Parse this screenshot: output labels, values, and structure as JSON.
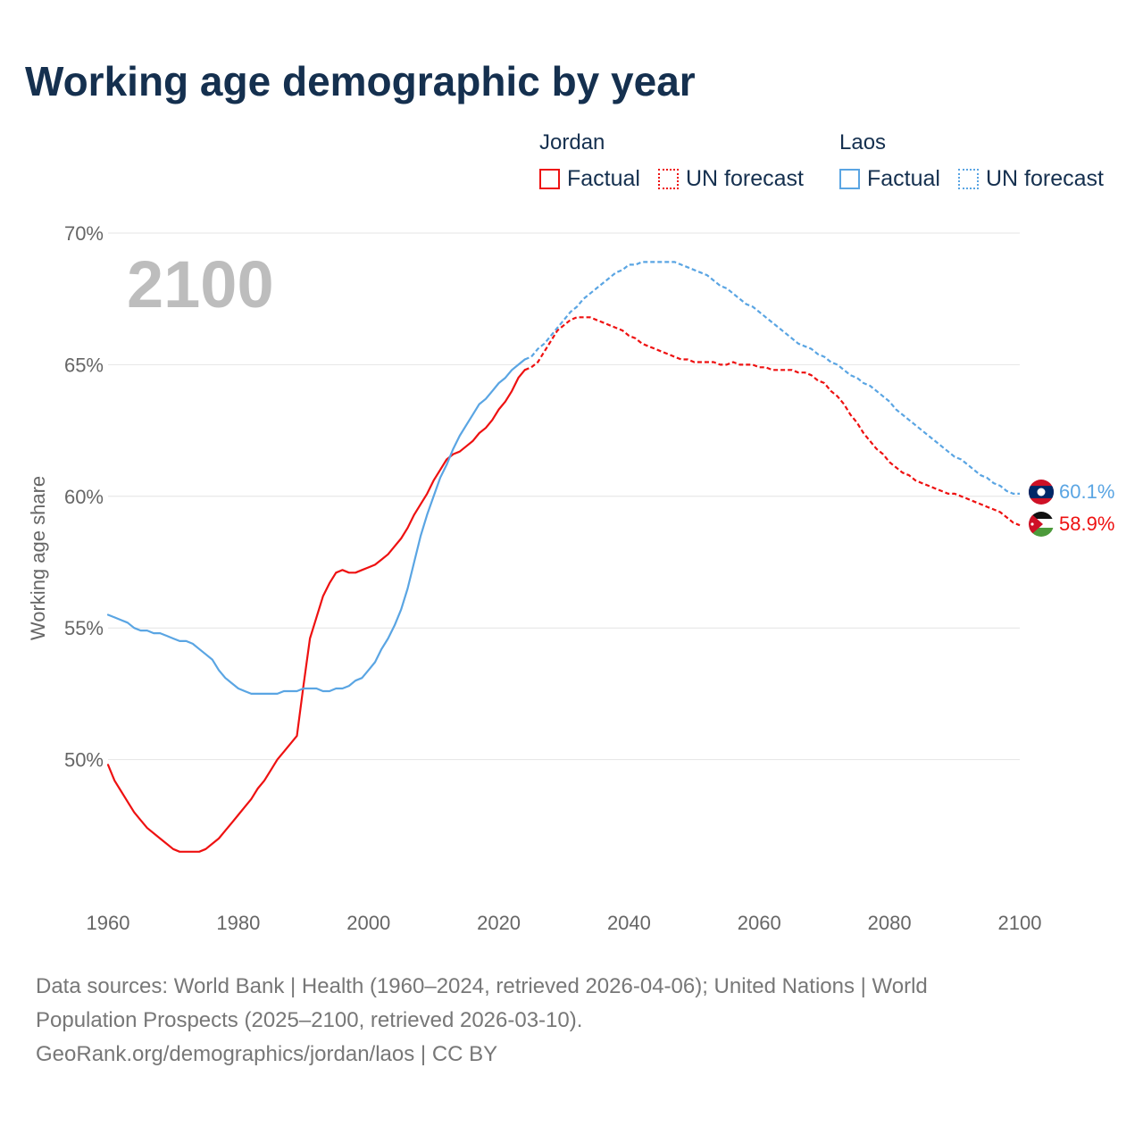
{
  "title": "Working age demographic by year",
  "legend": {
    "groups": [
      {
        "country": "Jordan",
        "color": "#ee1111",
        "entries": [
          {
            "label": "Factual",
            "style": "solid"
          },
          {
            "label": "UN forecast",
            "style": "dotted"
          }
        ]
      },
      {
        "country": "Laos",
        "color": "#5aa5e3",
        "entries": [
          {
            "label": "Factual",
            "style": "solid"
          },
          {
            "label": "UN forecast",
            "style": "dotted"
          }
        ]
      }
    ]
  },
  "footer": {
    "line1": "Data sources: World Bank | Health (1960–2024, retrieved 2026-04-06); United Nations | World",
    "line2": "Population Prospects (2025–2100, retrieved 2026-03-10).",
    "line3": "GeoRank.org/demographics/jordan/laos | CC BY"
  },
  "chart_data": {
    "type": "line",
    "title": "Working age demographic by year",
    "ylabel": "Working age share",
    "xlabel": "",
    "year_label": "2100",
    "xlim": [
      1960,
      2100
    ],
    "ylim": [
      45,
      70
    ],
    "x_ticks": [
      1960,
      1980,
      2000,
      2020,
      2040,
      2060,
      2080,
      2100
    ],
    "y_ticks": [
      50,
      55,
      60,
      65,
      70
    ],
    "y_tick_suffix": "%",
    "factual_end_year": 2024,
    "grid": true,
    "series": [
      {
        "name": "Jordan",
        "color": "#ee1111",
        "end_label": "58.9%",
        "flag": "jordan-flag",
        "points": [
          [
            1960,
            49.8
          ],
          [
            1961,
            49.2
          ],
          [
            1962,
            48.8
          ],
          [
            1963,
            48.4
          ],
          [
            1964,
            48.0
          ],
          [
            1965,
            47.7
          ],
          [
            1966,
            47.4
          ],
          [
            1967,
            47.2
          ],
          [
            1968,
            47.0
          ],
          [
            1969,
            46.8
          ],
          [
            1970,
            46.6
          ],
          [
            1971,
            46.5
          ],
          [
            1972,
            46.5
          ],
          [
            1973,
            46.5
          ],
          [
            1974,
            46.5
          ],
          [
            1975,
            46.6
          ],
          [
            1976,
            46.8
          ],
          [
            1977,
            47.0
          ],
          [
            1978,
            47.3
          ],
          [
            1979,
            47.6
          ],
          [
            1980,
            47.9
          ],
          [
            1981,
            48.2
          ],
          [
            1982,
            48.5
          ],
          [
            1983,
            48.9
          ],
          [
            1984,
            49.2
          ],
          [
            1985,
            49.6
          ],
          [
            1986,
            50.0
          ],
          [
            1987,
            50.3
          ],
          [
            1988,
            50.6
          ],
          [
            1989,
            50.9
          ],
          [
            1990,
            52.8
          ],
          [
            1991,
            54.6
          ],
          [
            1992,
            55.4
          ],
          [
            1993,
            56.2
          ],
          [
            1994,
            56.7
          ],
          [
            1995,
            57.1
          ],
          [
            1996,
            57.2
          ],
          [
            1997,
            57.1
          ],
          [
            1998,
            57.1
          ],
          [
            1999,
            57.2
          ],
          [
            2000,
            57.3
          ],
          [
            2001,
            57.4
          ],
          [
            2002,
            57.6
          ],
          [
            2003,
            57.8
          ],
          [
            2004,
            58.1
          ],
          [
            2005,
            58.4
          ],
          [
            2006,
            58.8
          ],
          [
            2007,
            59.3
          ],
          [
            2008,
            59.7
          ],
          [
            2009,
            60.1
          ],
          [
            2010,
            60.6
          ],
          [
            2011,
            61.0
          ],
          [
            2012,
            61.4
          ],
          [
            2013,
            61.6
          ],
          [
            2014,
            61.7
          ],
          [
            2015,
            61.9
          ],
          [
            2016,
            62.1
          ],
          [
            2017,
            62.4
          ],
          [
            2018,
            62.6
          ],
          [
            2019,
            62.9
          ],
          [
            2020,
            63.3
          ],
          [
            2021,
            63.6
          ],
          [
            2022,
            64.0
          ],
          [
            2023,
            64.5
          ],
          [
            2024,
            64.8
          ],
          [
            2025,
            64.9
          ],
          [
            2026,
            65.1
          ],
          [
            2027,
            65.5
          ],
          [
            2028,
            65.9
          ],
          [
            2029,
            66.3
          ],
          [
            2030,
            66.5
          ],
          [
            2031,
            66.7
          ],
          [
            2032,
            66.8
          ],
          [
            2033,
            66.8
          ],
          [
            2034,
            66.8
          ],
          [
            2035,
            66.7
          ],
          [
            2036,
            66.6
          ],
          [
            2037,
            66.5
          ],
          [
            2038,
            66.4
          ],
          [
            2039,
            66.3
          ],
          [
            2040,
            66.1
          ],
          [
            2041,
            66.0
          ],
          [
            2042,
            65.8
          ],
          [
            2043,
            65.7
          ],
          [
            2044,
            65.6
          ],
          [
            2045,
            65.5
          ],
          [
            2046,
            65.4
          ],
          [
            2047,
            65.3
          ],
          [
            2048,
            65.2
          ],
          [
            2049,
            65.2
          ],
          [
            2050,
            65.1
          ],
          [
            2051,
            65.1
          ],
          [
            2052,
            65.1
          ],
          [
            2053,
            65.1
          ],
          [
            2054,
            65.0
          ],
          [
            2055,
            65.0
          ],
          [
            2056,
            65.1
          ],
          [
            2057,
            65.0
          ],
          [
            2058,
            65.0
          ],
          [
            2059,
            65.0
          ],
          [
            2060,
            64.9
          ],
          [
            2061,
            64.9
          ],
          [
            2062,
            64.8
          ],
          [
            2063,
            64.8
          ],
          [
            2064,
            64.8
          ],
          [
            2065,
            64.8
          ],
          [
            2066,
            64.7
          ],
          [
            2067,
            64.7
          ],
          [
            2068,
            64.6
          ],
          [
            2069,
            64.4
          ],
          [
            2070,
            64.3
          ],
          [
            2071,
            64.0
          ],
          [
            2072,
            63.8
          ],
          [
            2073,
            63.5
          ],
          [
            2074,
            63.1
          ],
          [
            2075,
            62.8
          ],
          [
            2076,
            62.4
          ],
          [
            2077,
            62.1
          ],
          [
            2078,
            61.8
          ],
          [
            2079,
            61.6
          ],
          [
            2080,
            61.3
          ],
          [
            2081,
            61.1
          ],
          [
            2082,
            60.9
          ],
          [
            2083,
            60.8
          ],
          [
            2084,
            60.6
          ],
          [
            2085,
            60.5
          ],
          [
            2086,
            60.4
          ],
          [
            2087,
            60.3
          ],
          [
            2088,
            60.2
          ],
          [
            2089,
            60.1
          ],
          [
            2090,
            60.1
          ],
          [
            2091,
            60.0
          ],
          [
            2092,
            59.9
          ],
          [
            2093,
            59.8
          ],
          [
            2094,
            59.7
          ],
          [
            2095,
            59.6
          ],
          [
            2096,
            59.5
          ],
          [
            2097,
            59.4
          ],
          [
            2098,
            59.2
          ],
          [
            2099,
            59.0
          ],
          [
            2100,
            58.9
          ]
        ]
      },
      {
        "name": "Laos",
        "color": "#5aa5e3",
        "end_label": "60.1%",
        "flag": "laos-flag",
        "points": [
          [
            1960,
            55.5
          ],
          [
            1961,
            55.4
          ],
          [
            1962,
            55.3
          ],
          [
            1963,
            55.2
          ],
          [
            1964,
            55.0
          ],
          [
            1965,
            54.9
          ],
          [
            1966,
            54.9
          ],
          [
            1967,
            54.8
          ],
          [
            1968,
            54.8
          ],
          [
            1969,
            54.7
          ],
          [
            1970,
            54.6
          ],
          [
            1971,
            54.5
          ],
          [
            1972,
            54.5
          ],
          [
            1973,
            54.4
          ],
          [
            1974,
            54.2
          ],
          [
            1975,
            54.0
          ],
          [
            1976,
            53.8
          ],
          [
            1977,
            53.4
          ],
          [
            1978,
            53.1
          ],
          [
            1979,
            52.9
          ],
          [
            1980,
            52.7
          ],
          [
            1981,
            52.6
          ],
          [
            1982,
            52.5
          ],
          [
            1983,
            52.5
          ],
          [
            1984,
            52.5
          ],
          [
            1985,
            52.5
          ],
          [
            1986,
            52.5
          ],
          [
            1987,
            52.6
          ],
          [
            1988,
            52.6
          ],
          [
            1989,
            52.6
          ],
          [
            1990,
            52.7
          ],
          [
            1991,
            52.7
          ],
          [
            1992,
            52.7
          ],
          [
            1993,
            52.6
          ],
          [
            1994,
            52.6
          ],
          [
            1995,
            52.7
          ],
          [
            1996,
            52.7
          ],
          [
            1997,
            52.8
          ],
          [
            1998,
            53.0
          ],
          [
            1999,
            53.1
          ],
          [
            2000,
            53.4
          ],
          [
            2001,
            53.7
          ],
          [
            2002,
            54.2
          ],
          [
            2003,
            54.6
          ],
          [
            2004,
            55.1
          ],
          [
            2005,
            55.7
          ],
          [
            2006,
            56.5
          ],
          [
            2007,
            57.5
          ],
          [
            2008,
            58.5
          ],
          [
            2009,
            59.3
          ],
          [
            2010,
            60.0
          ],
          [
            2011,
            60.7
          ],
          [
            2012,
            61.2
          ],
          [
            2013,
            61.8
          ],
          [
            2014,
            62.3
          ],
          [
            2015,
            62.7
          ],
          [
            2016,
            63.1
          ],
          [
            2017,
            63.5
          ],
          [
            2018,
            63.7
          ],
          [
            2019,
            64.0
          ],
          [
            2020,
            64.3
          ],
          [
            2021,
            64.5
          ],
          [
            2022,
            64.8
          ],
          [
            2023,
            65.0
          ],
          [
            2024,
            65.2
          ],
          [
            2025,
            65.3
          ],
          [
            2026,
            65.6
          ],
          [
            2027,
            65.8
          ],
          [
            2028,
            66.1
          ],
          [
            2029,
            66.4
          ],
          [
            2030,
            66.7
          ],
          [
            2031,
            67.0
          ],
          [
            2032,
            67.2
          ],
          [
            2033,
            67.5
          ],
          [
            2034,
            67.7
          ],
          [
            2035,
            67.9
          ],
          [
            2036,
            68.1
          ],
          [
            2037,
            68.3
          ],
          [
            2038,
            68.5
          ],
          [
            2039,
            68.6
          ],
          [
            2040,
            68.8
          ],
          [
            2041,
            68.8
          ],
          [
            2042,
            68.9
          ],
          [
            2043,
            68.9
          ],
          [
            2044,
            68.9
          ],
          [
            2045,
            68.9
          ],
          [
            2046,
            68.9
          ],
          [
            2047,
            68.9
          ],
          [
            2048,
            68.8
          ],
          [
            2049,
            68.7
          ],
          [
            2050,
            68.6
          ],
          [
            2051,
            68.5
          ],
          [
            2052,
            68.4
          ],
          [
            2053,
            68.2
          ],
          [
            2054,
            68.0
          ],
          [
            2055,
            67.9
          ],
          [
            2056,
            67.7
          ],
          [
            2057,
            67.5
          ],
          [
            2058,
            67.3
          ],
          [
            2059,
            67.2
          ],
          [
            2060,
            67.0
          ],
          [
            2061,
            66.8
          ],
          [
            2062,
            66.6
          ],
          [
            2063,
            66.4
          ],
          [
            2064,
            66.2
          ],
          [
            2065,
            66.0
          ],
          [
            2066,
            65.8
          ],
          [
            2067,
            65.7
          ],
          [
            2068,
            65.6
          ],
          [
            2069,
            65.4
          ],
          [
            2070,
            65.3
          ],
          [
            2071,
            65.1
          ],
          [
            2072,
            65.0
          ],
          [
            2073,
            64.8
          ],
          [
            2074,
            64.6
          ],
          [
            2075,
            64.5
          ],
          [
            2076,
            64.3
          ],
          [
            2077,
            64.2
          ],
          [
            2078,
            64.0
          ],
          [
            2079,
            63.8
          ],
          [
            2080,
            63.6
          ],
          [
            2081,
            63.3
          ],
          [
            2082,
            63.1
          ],
          [
            2083,
            62.9
          ],
          [
            2084,
            62.7
          ],
          [
            2085,
            62.5
          ],
          [
            2086,
            62.3
          ],
          [
            2087,
            62.1
          ],
          [
            2088,
            61.9
          ],
          [
            2089,
            61.7
          ],
          [
            2090,
            61.5
          ],
          [
            2091,
            61.4
          ],
          [
            2092,
            61.2
          ],
          [
            2093,
            61.0
          ],
          [
            2094,
            60.8
          ],
          [
            2095,
            60.7
          ],
          [
            2096,
            60.5
          ],
          [
            2097,
            60.4
          ],
          [
            2098,
            60.2
          ],
          [
            2099,
            60.1
          ],
          [
            2100,
            60.1
          ]
        ]
      }
    ]
  }
}
